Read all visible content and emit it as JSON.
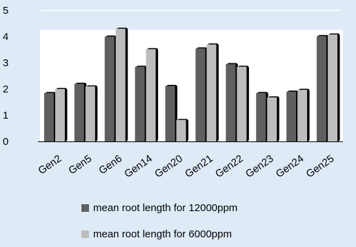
{
  "chart_data": {
    "type": "bar",
    "categories": [
      "Gen2",
      "Gen5",
      "Gen6",
      "Gen14",
      "Gen20",
      "Gen21",
      "Gen22",
      "Gen23",
      "Gen24",
      "Gen25"
    ],
    "series": [
      {
        "name": "mean root length for 12000ppm",
        "color": "#5f5f5f",
        "values": [
          1.85,
          2.2,
          4.0,
          2.85,
          2.12,
          3.55,
          2.95,
          1.85,
          1.9,
          4.02
        ]
      },
      {
        "name": "mean root length for 6000ppm",
        "color": "#bdbdbd",
        "values": [
          2.0,
          2.1,
          4.3,
          3.52,
          0.82,
          3.7,
          2.85,
          1.68,
          1.97,
          4.08
        ]
      }
    ],
    "ylim": [
      0,
      5
    ],
    "yticks": [
      "0",
      "1",
      "2",
      "3",
      "4",
      "5"
    ],
    "grid": false,
    "legend_position": "bottom"
  }
}
